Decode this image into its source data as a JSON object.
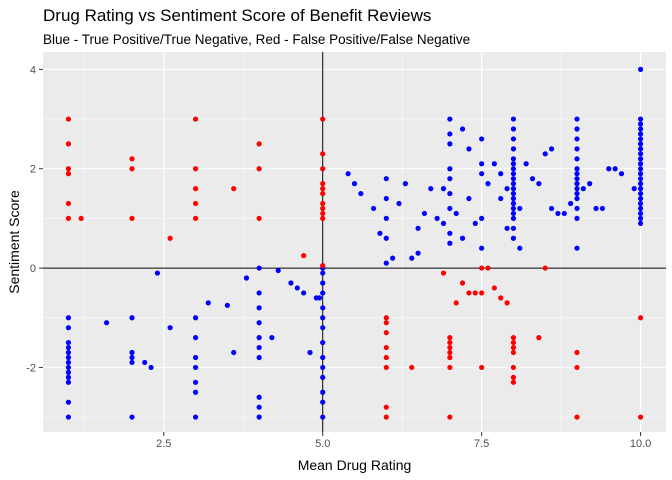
{
  "chart_data": {
    "type": "scatter",
    "title": "Drug Rating vs Sentiment Score of Benefit Reviews",
    "subtitle": "Blue - True Positive/True Negative, Red - False Positive/False Negative",
    "xlabel": "Mean Drug Rating",
    "ylabel": "Sentiment Score",
    "xlim": [
      0.6,
      10.4
    ],
    "ylim": [
      -3.3,
      4.35
    ],
    "xticks": [
      2.5,
      5.0,
      7.5,
      10.0
    ],
    "xtick_labels": [
      "2.5",
      "5.0",
      "7.5",
      "10.0"
    ],
    "yticks": [
      -2,
      0,
      2,
      4
    ],
    "ytick_labels": [
      "-2",
      "0",
      "2",
      "4"
    ],
    "reference_lines": {
      "x": 5,
      "y": 0
    },
    "background": "#ebebeb",
    "grid": true,
    "legend": "none",
    "series": [
      {
        "color": "#0000ff",
        "points": [
          [
            1,
            -1
          ],
          [
            1,
            -1.2
          ],
          [
            1,
            -1.5
          ],
          [
            1,
            -1.6
          ],
          [
            1,
            -1.7
          ],
          [
            1,
            -1.8
          ],
          [
            1,
            -1.9
          ],
          [
            1,
            -2
          ],
          [
            1,
            -2.1
          ],
          [
            1,
            -2.2
          ],
          [
            1,
            -2.3
          ],
          [
            1,
            -2.7
          ],
          [
            1,
            -3
          ],
          [
            1.6,
            -1.1
          ],
          [
            2,
            -1
          ],
          [
            2,
            -1.7
          ],
          [
            2,
            -1.8
          ],
          [
            2,
            -1.9
          ],
          [
            2,
            -3
          ],
          [
            2.2,
            -1.9
          ],
          [
            2.3,
            -2
          ],
          [
            2.4,
            -0.1
          ],
          [
            2.6,
            -1.2
          ],
          [
            3,
            -1
          ],
          [
            3,
            -1.4
          ],
          [
            3,
            -1.8
          ],
          [
            3,
            -2
          ],
          [
            3,
            -2.3
          ],
          [
            3,
            -2.5
          ],
          [
            3,
            -3
          ],
          [
            3.2,
            -0.7
          ],
          [
            3.5,
            -0.75
          ],
          [
            3.6,
            -1.7
          ],
          [
            3.8,
            -0.2
          ],
          [
            4,
            0
          ],
          [
            4,
            -0.5
          ],
          [
            4,
            -0.8
          ],
          [
            4,
            -1.1
          ],
          [
            4,
            -1.4
          ],
          [
            4,
            -1.6
          ],
          [
            4,
            -1.8
          ],
          [
            4,
            -2.6
          ],
          [
            4,
            -2.8
          ],
          [
            4,
            -3
          ],
          [
            4.2,
            -1.4
          ],
          [
            4.3,
            -0.05
          ],
          [
            4.5,
            -0.3
          ],
          [
            4.6,
            -0.4
          ],
          [
            4.7,
            -0.5
          ],
          [
            4.8,
            -1.7
          ],
          [
            4.9,
            -0.6
          ],
          [
            4.95,
            -0.6
          ],
          [
            5,
            0
          ],
          [
            5,
            -0.1
          ],
          [
            5,
            -0.3
          ],
          [
            5,
            -0.5
          ],
          [
            5,
            -0.8
          ],
          [
            5,
            -1
          ],
          [
            5,
            -1.2
          ],
          [
            5,
            -1.5
          ],
          [
            5,
            -1.8
          ],
          [
            5,
            -2
          ],
          [
            5,
            -2.2
          ],
          [
            5,
            -2.5
          ],
          [
            5,
            -2.7
          ],
          [
            5,
            -3
          ],
          [
            5.4,
            1.9
          ],
          [
            5.5,
            1.7
          ],
          [
            5.6,
            1.5
          ],
          [
            5.8,
            1.2
          ],
          [
            5.9,
            0.7
          ],
          [
            6,
            0.6
          ],
          [
            6,
            0.1
          ],
          [
            6,
            1.8
          ],
          [
            6,
            1.4
          ],
          [
            6,
            1
          ],
          [
            6.1,
            0.2
          ],
          [
            6.2,
            1.3
          ],
          [
            6.3,
            1.7
          ],
          [
            6.4,
            0.2
          ],
          [
            6.5,
            0.3
          ],
          [
            6.5,
            0.8
          ],
          [
            6.6,
            1.1
          ],
          [
            6.7,
            1.6
          ],
          [
            6.8,
            1
          ],
          [
            6.9,
            0.9
          ],
          [
            6.9,
            1.6
          ],
          [
            7,
            3
          ],
          [
            7,
            2.7
          ],
          [
            7,
            2.5
          ],
          [
            7,
            2
          ],
          [
            7,
            1.8
          ],
          [
            7,
            1.5
          ],
          [
            7,
            1.2
          ],
          [
            7,
            0.7
          ],
          [
            7,
            0.5
          ],
          [
            7.1,
            1.1
          ],
          [
            7.2,
            0.6
          ],
          [
            7.2,
            2.8
          ],
          [
            7.3,
            2.4
          ],
          [
            7.3,
            1.4
          ],
          [
            7.4,
            0.9
          ],
          [
            7.5,
            2.6
          ],
          [
            7.5,
            2.1
          ],
          [
            7.5,
            1.9
          ],
          [
            7.5,
            1
          ],
          [
            7.5,
            0.4
          ],
          [
            7.6,
            1.7
          ],
          [
            7.7,
            2.1
          ],
          [
            7.8,
            1.9
          ],
          [
            7.8,
            1.4
          ],
          [
            7.9,
            0.8
          ],
          [
            7.9,
            1.6
          ],
          [
            8,
            3
          ],
          [
            8,
            2.8
          ],
          [
            8,
            2.6
          ],
          [
            8,
            2.4
          ],
          [
            8,
            2.2
          ],
          [
            8,
            2.1
          ],
          [
            8,
            2
          ],
          [
            8,
            1.9
          ],
          [
            8,
            1.8
          ],
          [
            8,
            1.7
          ],
          [
            8,
            1.6
          ],
          [
            8,
            1.5
          ],
          [
            8,
            1.4
          ],
          [
            8,
            1.3
          ],
          [
            8,
            1.2
          ],
          [
            8,
            1.1
          ],
          [
            8,
            1
          ],
          [
            8,
            0.8
          ],
          [
            8,
            0.6
          ],
          [
            8.1,
            1.2
          ],
          [
            8.1,
            0.4
          ],
          [
            8.2,
            2.1
          ],
          [
            8.3,
            1.8
          ],
          [
            8.4,
            1.7
          ],
          [
            8.5,
            2.3
          ],
          [
            8.6,
            2.4
          ],
          [
            8.6,
            1.2
          ],
          [
            8.7,
            1.1
          ],
          [
            8.8,
            1.1
          ],
          [
            8.9,
            1.3
          ],
          [
            9,
            3
          ],
          [
            9,
            2.8
          ],
          [
            9,
            2.6
          ],
          [
            9,
            2.4
          ],
          [
            9,
            2.2
          ],
          [
            9,
            2
          ],
          [
            9,
            1.9
          ],
          [
            9,
            1.8
          ],
          [
            9,
            1.7
          ],
          [
            9,
            1.6
          ],
          [
            9,
            1.5
          ],
          [
            9,
            1.4
          ],
          [
            9,
            1.2
          ],
          [
            9,
            1
          ],
          [
            9,
            0.4
          ],
          [
            9.1,
            1.6
          ],
          [
            9.2,
            1.7
          ],
          [
            9.3,
            1.2
          ],
          [
            9.4,
            1.2
          ],
          [
            9.5,
            2
          ],
          [
            9.6,
            2
          ],
          [
            9.7,
            1.9
          ],
          [
            9.9,
            1.6
          ],
          [
            10,
            4
          ],
          [
            10,
            3
          ],
          [
            10,
            2.9
          ],
          [
            10,
            2.8
          ],
          [
            10,
            2.7
          ],
          [
            10,
            2.6
          ],
          [
            10,
            2.5
          ],
          [
            10,
            2.4
          ],
          [
            10,
            2.3
          ],
          [
            10,
            2.2
          ],
          [
            10,
            2.1
          ],
          [
            10,
            2
          ],
          [
            10,
            1.9
          ],
          [
            10,
            1.8
          ],
          [
            10,
            1.7
          ],
          [
            10,
            1.6
          ],
          [
            10,
            1.5
          ],
          [
            10,
            1.4
          ],
          [
            10,
            1.3
          ],
          [
            10,
            1.2
          ],
          [
            10,
            1.1
          ],
          [
            10,
            1
          ],
          [
            10,
            0.9
          ]
        ]
      },
      {
        "color": "#ff0000",
        "points": [
          [
            1,
            3
          ],
          [
            1,
            2.5
          ],
          [
            1,
            2
          ],
          [
            1,
            1.9
          ],
          [
            1,
            1.3
          ],
          [
            1,
            1
          ],
          [
            1.2,
            1
          ],
          [
            2,
            2.2
          ],
          [
            2,
            2
          ],
          [
            2,
            1
          ],
          [
            2.6,
            0.6
          ],
          [
            3,
            3
          ],
          [
            3,
            2
          ],
          [
            3,
            1.6
          ],
          [
            3,
            1.3
          ],
          [
            3,
            1
          ],
          [
            3.6,
            1.6
          ],
          [
            4,
            2.5
          ],
          [
            4,
            2
          ],
          [
            4,
            1
          ],
          [
            4.7,
            0.25
          ],
          [
            5,
            3
          ],
          [
            5,
            2.3
          ],
          [
            5,
            2
          ],
          [
            5,
            1.7
          ],
          [
            5,
            1.6
          ],
          [
            5,
            1.5
          ],
          [
            5,
            1.3
          ],
          [
            5,
            1.2
          ],
          [
            5,
            1.1
          ],
          [
            5,
            1
          ],
          [
            5,
            0.05
          ],
          [
            6,
            -1
          ],
          [
            6,
            -1.1
          ],
          [
            6,
            -1.3
          ],
          [
            6,
            -1.6
          ],
          [
            6,
            -1.8
          ],
          [
            6,
            -2
          ],
          [
            6,
            -2.8
          ],
          [
            6,
            -3
          ],
          [
            6.4,
            -2
          ],
          [
            6.9,
            -0.1
          ],
          [
            7,
            -1.4
          ],
          [
            7,
            -1.5
          ],
          [
            7,
            -1.6
          ],
          [
            7,
            -1.7
          ],
          [
            7,
            -1.8
          ],
          [
            7,
            -2
          ],
          [
            7,
            -3
          ],
          [
            7.1,
            -0.7
          ],
          [
            7.2,
            -0.3
          ],
          [
            7.3,
            -0.5
          ],
          [
            7.4,
            -0.5
          ],
          [
            7.5,
            0
          ],
          [
            7.5,
            -0.5
          ],
          [
            7.5,
            -2
          ],
          [
            7.6,
            0
          ],
          [
            7.7,
            -0.4
          ],
          [
            7.8,
            -0.6
          ],
          [
            7.9,
            -0.7
          ],
          [
            8,
            -1.4
          ],
          [
            8,
            -1.5
          ],
          [
            8,
            -1.6
          ],
          [
            8,
            -1.7
          ],
          [
            8,
            -2
          ],
          [
            8,
            -2.2
          ],
          [
            8,
            -2.3
          ],
          [
            8.4,
            -1.4
          ],
          [
            8.5,
            0
          ],
          [
            9,
            -1.7
          ],
          [
            9,
            -2
          ],
          [
            9,
            -3
          ],
          [
            10,
            -1
          ],
          [
            10,
            -3
          ]
        ]
      }
    ]
  }
}
